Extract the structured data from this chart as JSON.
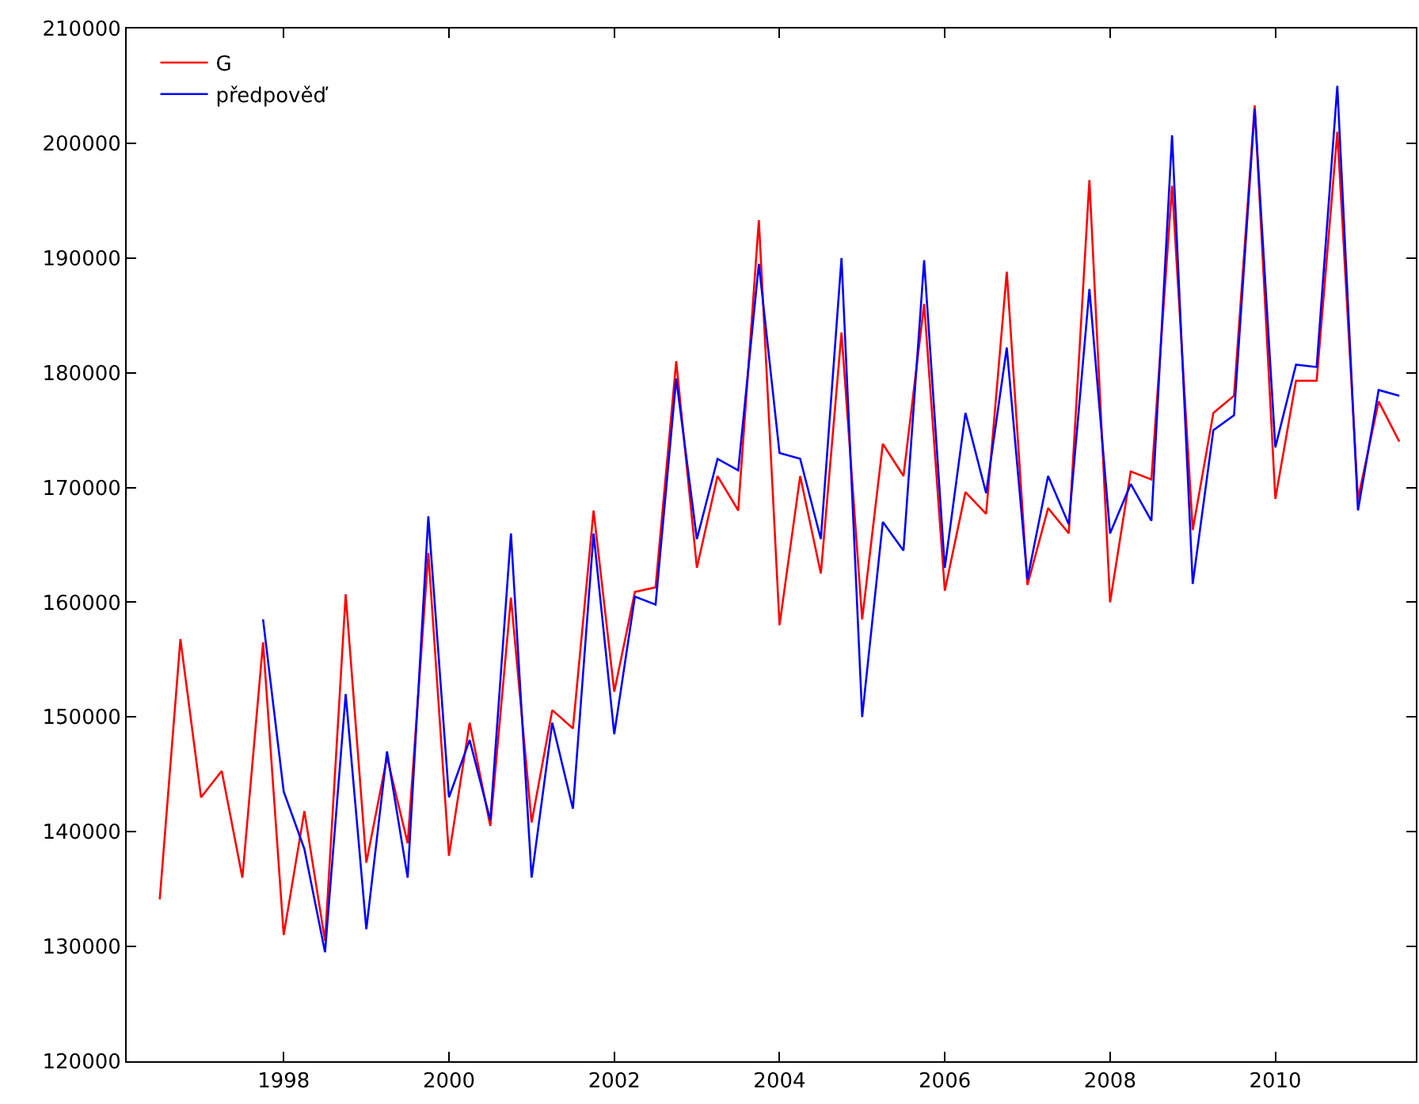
{
  "chart_data": {
    "type": "line",
    "xlim": [
      1996.1,
      2011.7
    ],
    "xticks": [
      1998,
      2000,
      2002,
      2004,
      2006,
      2008,
      2010
    ],
    "ylim": [
      120000,
      210000
    ],
    "yticks": [
      120000,
      130000,
      140000,
      150000,
      160000,
      170000,
      180000,
      190000,
      200000,
      210000
    ],
    "legend": "top left",
    "marker": "none",
    "line_style": "solid",
    "series": [
      {
        "name": "G",
        "color": "#ff0000",
        "x": [
          1996.5,
          1996.75,
          1997.0,
          1997.25,
          1997.5,
          1997.75,
          1998.0,
          1998.25,
          1998.5,
          1998.75,
          1999.0,
          1999.25,
          1999.5,
          1999.75,
          2000.0,
          2000.25,
          2000.5,
          2000.75,
          2001.0,
          2001.25,
          2001.5,
          2001.75,
          2002.0,
          2002.25,
          2002.5,
          2002.75,
          2003.0,
          2003.25,
          2003.5,
          2003.75,
          2004.0,
          2004.25,
          2004.5,
          2004.75,
          2005.0,
          2005.25,
          2005.5,
          2005.75,
          2006.0,
          2006.25,
          2006.5,
          2006.75,
          2007.0,
          2007.25,
          2007.5,
          2007.75,
          2008.0,
          2008.25,
          2008.5,
          2008.75,
          2009.0,
          2009.25,
          2009.5,
          2009.75,
          2010.0,
          2010.25,
          2010.5,
          2010.75,
          2011.0,
          2011.25,
          2011.5
        ],
        "values": [
          134100,
          156800,
          143000,
          145300,
          136000,
          156500,
          131000,
          141800,
          130500,
          160700,
          137300,
          146500,
          139000,
          164300,
          137900,
          149500,
          140500,
          160400,
          140800,
          150600,
          149000,
          168000,
          152200,
          160900,
          161300,
          181000,
          163000,
          171000,
          168000,
          193300,
          158000,
          171000,
          162500,
          183500,
          158500,
          173800,
          171000,
          186000,
          161000,
          169600,
          167700,
          188800,
          161500,
          168200,
          166000,
          196800,
          160000,
          171400,
          170700,
          196300,
          166300,
          176500,
          178000,
          203300,
          169000,
          179300,
          179300,
          201000,
          169000,
          177500,
          174000
        ]
      },
      {
        "name": "předpověď",
        "color": "#0000ff",
        "x": [
          1997.75,
          1998.0,
          1998.25,
          1998.5,
          1998.75,
          1999.0,
          1999.25,
          1999.5,
          1999.75,
          2000.0,
          2000.25,
          2000.5,
          2000.75,
          2001.0,
          2001.25,
          2001.5,
          2001.75,
          2002.0,
          2002.25,
          2002.5,
          2002.75,
          2003.0,
          2003.25,
          2003.5,
          2003.75,
          2004.0,
          2004.25,
          2004.5,
          2004.75,
          2005.0,
          2005.25,
          2005.5,
          2005.75,
          2006.0,
          2006.25,
          2006.5,
          2006.75,
          2007.0,
          2007.25,
          2007.5,
          2007.75,
          2008.0,
          2008.25,
          2008.5,
          2008.75,
          2009.0,
          2009.25,
          2009.5,
          2009.75,
          2010.0,
          2010.25,
          2010.5,
          2010.75,
          2011.0,
          2011.25,
          2011.5
        ],
        "values": [
          158500,
          143500,
          138500,
          129500,
          152000,
          131500,
          147000,
          136000,
          167500,
          143000,
          148000,
          141000,
          166000,
          136000,
          149500,
          142000,
          166000,
          148500,
          160500,
          159800,
          179500,
          165500,
          172500,
          171500,
          189500,
          173000,
          172500,
          165500,
          190000,
          150000,
          167000,
          164500,
          189800,
          163000,
          176500,
          169500,
          182200,
          162000,
          171000,
          166800,
          187300,
          166000,
          170300,
          167100,
          200700,
          161600,
          175000,
          176300,
          203000,
          173500,
          180700,
          180500,
          205000,
          168000,
          178500,
          178000
        ]
      }
    ]
  }
}
